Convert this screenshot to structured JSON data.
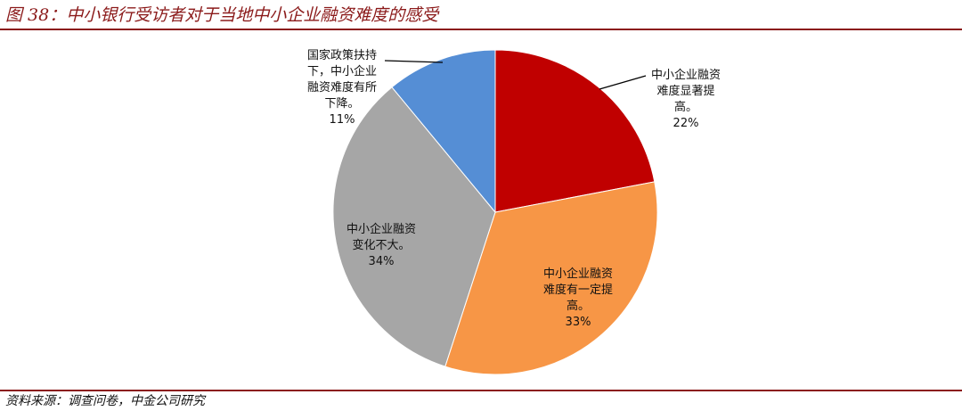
{
  "figure": {
    "title": "图 38：中小银行受访者对于当地中小企业融资难度的感受",
    "source": "资料来源：调查问卷，中金公司研究"
  },
  "chart_data": {
    "type": "pie",
    "slices": [
      {
        "label_lines": [
          "中小企业融资",
          "难度显著提",
          "高。"
        ],
        "value": 22,
        "value_text": "22%",
        "color": "#c00000"
      },
      {
        "label_lines": [
          "中小企业融资",
          "难度有一定提",
          "高。"
        ],
        "value": 33,
        "value_text": "33%",
        "color": "#f79646"
      },
      {
        "label_lines": [
          "中小企业融资",
          "变化不大。"
        ],
        "value": 34,
        "value_text": "34%",
        "color": "#a6a6a6"
      },
      {
        "label_lines": [
          "国家政策扶持",
          "下，中小企业",
          "融资难度有所",
          "下降。"
        ],
        "value": 11,
        "value_text": "11%",
        "color": "#558ed5"
      }
    ]
  }
}
